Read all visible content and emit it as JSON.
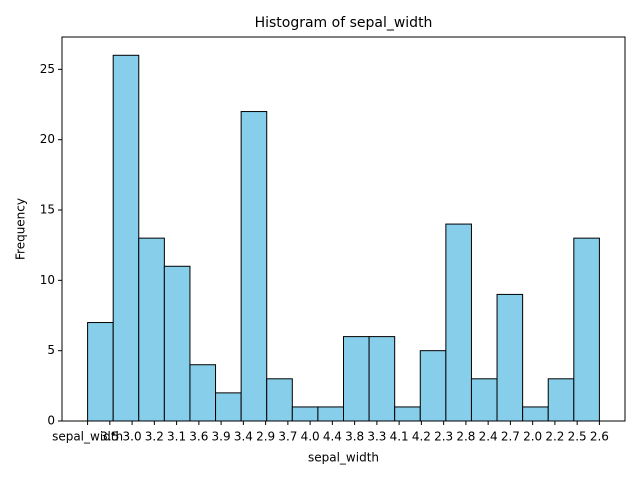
{
  "chart_data": {
    "type": "histogram",
    "title": "Histogram of sepal_width",
    "xlabel": "sepal_width",
    "ylabel": "Frequency",
    "bins": [
      0,
      1.15,
      2.3,
      3.45,
      4.6,
      5.75,
      6.9,
      8.05,
      9.2,
      10.35,
      11.5,
      12.65,
      13.8,
      14.95,
      16.1,
      17.25,
      18.4,
      19.55,
      20.7,
      21.85,
      23
    ],
    "values": [
      7,
      26,
      13,
      11,
      4,
      2,
      22,
      3,
      1,
      1,
      6,
      6,
      1,
      5,
      14,
      3,
      9,
      1,
      3,
      13
    ],
    "color": "#87ceeb",
    "edgecolor": "#000000",
    "xlim": [
      -1.15,
      24.15
    ],
    "xticks": [
      {
        "value": 0,
        "label": "sepal_width"
      },
      {
        "value": 1,
        "label": "3.5"
      },
      {
        "value": 2,
        "label": "3.0"
      },
      {
        "value": 3,
        "label": "3.2"
      },
      {
        "value": 4,
        "label": "3.1"
      },
      {
        "value": 5,
        "label": "3.6"
      },
      {
        "value": 6,
        "label": "3.9"
      },
      {
        "value": 7,
        "label": "3.4"
      },
      {
        "value": 8,
        "label": "2.9"
      },
      {
        "value": 9,
        "label": "3.7"
      },
      {
        "value": 10,
        "label": "4.0"
      },
      {
        "value": 11,
        "label": "4.4"
      },
      {
        "value": 12,
        "label": "3.8"
      },
      {
        "value": 13,
        "label": "3.3"
      },
      {
        "value": 14,
        "label": "4.1"
      },
      {
        "value": 15,
        "label": "4.2"
      },
      {
        "value": 16,
        "label": "2.3"
      },
      {
        "value": 17,
        "label": "2.8"
      },
      {
        "value": 18,
        "label": "2.4"
      },
      {
        "value": 19,
        "label": "2.7"
      },
      {
        "value": 20,
        "label": "2.0"
      },
      {
        "value": 21,
        "label": "2.2"
      },
      {
        "value": 22,
        "label": "2.5"
      },
      {
        "value": 23,
        "label": "2.6"
      }
    ],
    "ylim": [
      0,
      27.3
    ],
    "yticks": [
      0,
      5,
      10,
      15,
      20,
      25
    ],
    "grid": false
  }
}
